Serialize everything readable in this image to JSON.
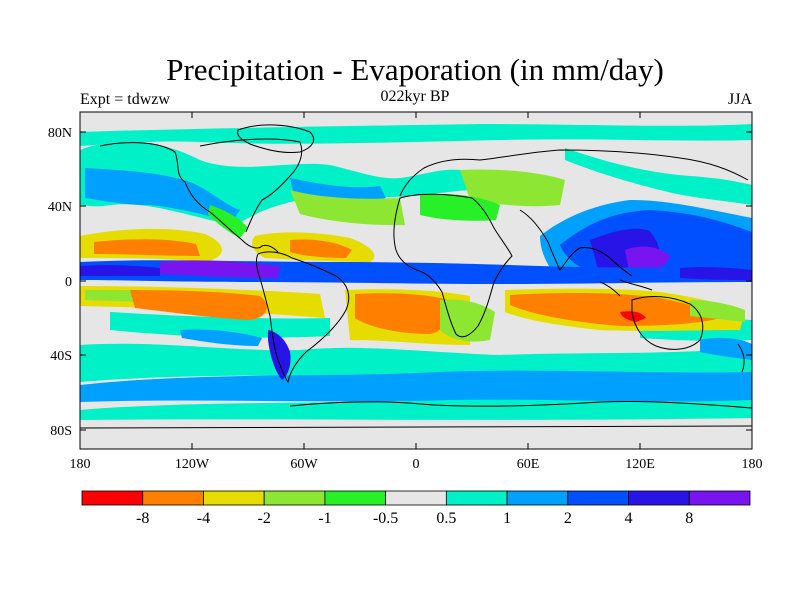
{
  "title": "Precipitation - Evaporation (in mm/day)",
  "subtitle_left": "Expt = tdwzw",
  "subtitle_center": "022kyr BP",
  "subtitle_right": "JJA",
  "lat_ticks": [
    "80N",
    "40N",
    "0",
    "40S",
    "80S"
  ],
  "lon_ticks": [
    "180",
    "120W",
    "60W",
    "0",
    "60E",
    "120E",
    "180"
  ],
  "colorbar": {
    "colors": [
      "#ff0000",
      "#ff8000",
      "#e6dc00",
      "#8ce632",
      "#28f028",
      "#e6e6e6",
      "#00f0c8",
      "#00a0ff",
      "#0050ff",
      "#2814e6",
      "#7814f0"
    ],
    "labels": [
      "-8",
      "-4",
      "-2",
      "-1",
      "-0.5",
      "0.5",
      "1",
      "2",
      "4",
      "8"
    ]
  },
  "land_color": "#e6e6e6"
}
